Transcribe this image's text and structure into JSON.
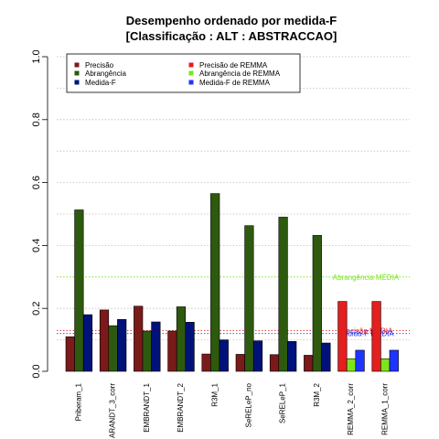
{
  "chart_data": {
    "type": "bar",
    "title": "Desempenho ordenado por medida-F",
    "subtitle": "[Classificação : ALT : ABSTRACCAO]",
    "xlabel": "",
    "ylabel": "",
    "ylim": [
      0,
      1.0
    ],
    "yticks": [
      "0.0",
      "0.2",
      "0.4",
      "0.6",
      "0.8",
      "1.0"
    ],
    "grid": "horizontal dotted",
    "legend_placement": "top-left",
    "categories": [
      "Priberam_1",
      "ARANDT_3_corr",
      "EMBRANDT_1",
      "EMBRANDT_2",
      "R3M_1",
      "SeRELeP_no",
      "SeRELeP_1",
      "R3M_2",
      "REMMA_2_corr",
      "REMMA_1_corr"
    ],
    "remma_categories": [
      "REMMA_2_corr",
      "REMMA_1_corr"
    ],
    "series": [
      {
        "name": "Precisão",
        "color": "#7b1a1a",
        "values": [
          0.11,
          0.195,
          0.207,
          0.128,
          0.055,
          0.054,
          0.053,
          0.051,
          null,
          null
        ]
      },
      {
        "name": "Abrangência",
        "color": "#2d5a0e",
        "values": [
          0.513,
          0.145,
          0.128,
          0.205,
          0.565,
          0.463,
          0.49,
          0.432,
          null,
          null
        ]
      },
      {
        "name": "Medida-F",
        "color": "#00127a",
        "values": [
          0.18,
          0.165,
          0.157,
          0.156,
          0.1,
          0.097,
          0.095,
          0.09,
          null,
          null
        ]
      },
      {
        "name": "Precisão  de  REMMA",
        "color": "#e51e1e",
        "values": [
          null,
          null,
          null,
          null,
          null,
          null,
          null,
          null,
          0.222,
          0.222
        ]
      },
      {
        "name": "Abrangência  de  REMMA",
        "color": "#7be51e",
        "values": [
          null,
          null,
          null,
          null,
          null,
          null,
          null,
          null,
          0.04,
          0.04
        ]
      },
      {
        "name": "Medida-F  de  REMMA",
        "color": "#1e35ff",
        "values": [
          null,
          null,
          null,
          null,
          null,
          null,
          null,
          null,
          0.067,
          0.067
        ]
      }
    ],
    "reference_lines": [
      {
        "label": "Abrangência MÉDIA",
        "value": 0.3,
        "color": "#7be51e"
      },
      {
        "label": "Precisão MÉDIA",
        "value": 0.13,
        "color": "#e51e1e"
      },
      {
        "label": "Medida-F MÉDIA",
        "value": 0.12,
        "color": "#1e35ff"
      }
    ]
  }
}
